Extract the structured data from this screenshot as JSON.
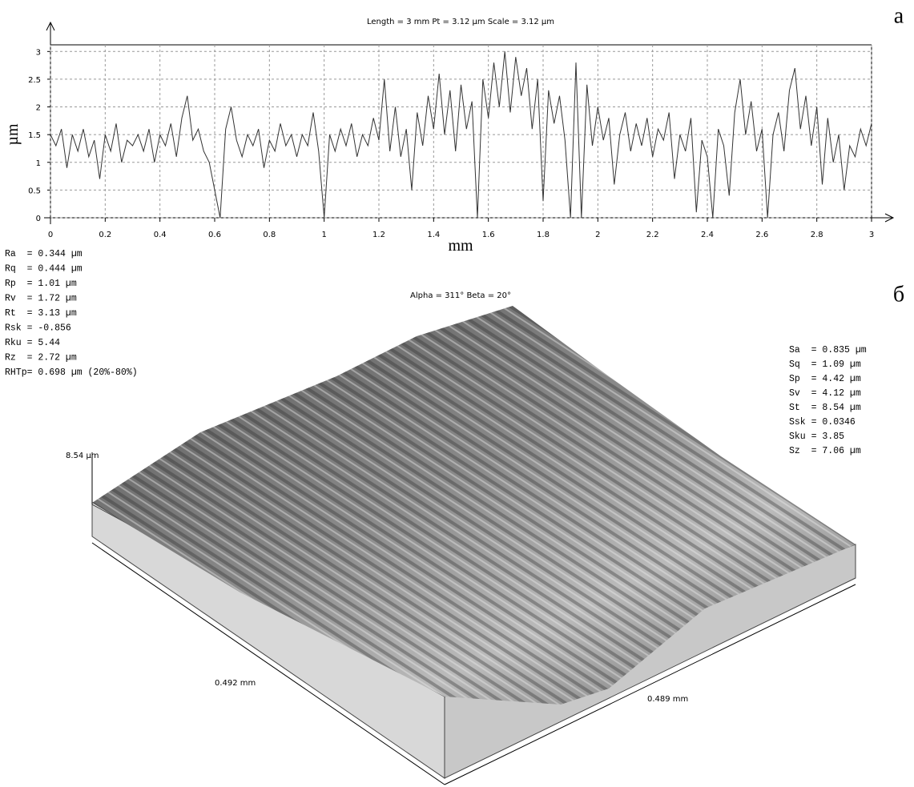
{
  "chart_data": {
    "type": "line",
    "title": "Length = 3 mm  Pt = 3.12 µm  Scale = 3.12 µm",
    "x_label": "mm",
    "y_label": "µm",
    "color": "#333333",
    "grid": true,
    "xlim": [
      0,
      3
    ],
    "ylim": [
      0,
      3.12
    ],
    "xticks": [
      0,
      0.2,
      0.4,
      0.6,
      0.8,
      1,
      1.2,
      1.4,
      1.6,
      1.8,
      2,
      2.2,
      2.4,
      2.6,
      2.8,
      3
    ],
    "yticks": [
      0,
      0.5,
      1,
      1.5,
      2,
      2.5,
      3
    ],
    "x": [
      0,
      0.02,
      0.04,
      0.06,
      0.08,
      0.1,
      0.12,
      0.14,
      0.16,
      0.18,
      0.2,
      0.22,
      0.24,
      0.26,
      0.28,
      0.3,
      0.32,
      0.34,
      0.36,
      0.38,
      0.4,
      0.42,
      0.44,
      0.46,
      0.48,
      0.5,
      0.52,
      0.54,
      0.56,
      0.58,
      0.6,
      0.62,
      0.64,
      0.66,
      0.68,
      0.7,
      0.72,
      0.74,
      0.76,
      0.78,
      0.8,
      0.82,
      0.84,
      0.86,
      0.88,
      0.9,
      0.92,
      0.94,
      0.96,
      0.98,
      1,
      1.02,
      1.04,
      1.06,
      1.08,
      1.1,
      1.12,
      1.14,
      1.16,
      1.18,
      1.2,
      1.22,
      1.24,
      1.26,
      1.28,
      1.3,
      1.32,
      1.34,
      1.36,
      1.38,
      1.4,
      1.42,
      1.44,
      1.46,
      1.48,
      1.5,
      1.52,
      1.54,
      1.56,
      1.58,
      1.6,
      1.62,
      1.64,
      1.66,
      1.68,
      1.7,
      1.72,
      1.74,
      1.76,
      1.78,
      1.8,
      1.82,
      1.84,
      1.86,
      1.88,
      1.9,
      1.92,
      1.94,
      1.96,
      1.98,
      2,
      2.02,
      2.04,
      2.06,
      2.08,
      2.1,
      2.12,
      2.14,
      2.16,
      2.18,
      2.2,
      2.22,
      2.24,
      2.26,
      2.28,
      2.3,
      2.32,
      2.34,
      2.36,
      2.38,
      2.4,
      2.42,
      2.44,
      2.46,
      2.48,
      2.5,
      2.52,
      2.54,
      2.56,
      2.58,
      2.6,
      2.62,
      2.64,
      2.66,
      2.68,
      2.7,
      2.72,
      2.74,
      2.76,
      2.78,
      2.8,
      2.82,
      2.84,
      2.86,
      2.88,
      2.9,
      2.92,
      2.94,
      2.96,
      2.98,
      3
    ],
    "values": [
      1.5,
      1.3,
      1.6,
      0.9,
      1.5,
      1.2,
      1.6,
      1.1,
      1.4,
      0.7,
      1.5,
      1.2,
      1.7,
      1.0,
      1.4,
      1.3,
      1.5,
      1.2,
      1.6,
      1.0,
      1.5,
      1.3,
      1.7,
      1.1,
      1.8,
      2.2,
      1.4,
      1.6,
      1.2,
      1.0,
      0.5,
      0.0,
      1.6,
      2.0,
      1.4,
      1.1,
      1.5,
      1.3,
      1.6,
      0.9,
      1.4,
      1.2,
      1.7,
      1.3,
      1.5,
      1.1,
      1.5,
      1.3,
      1.9,
      1.2,
      0.0,
      1.5,
      1.2,
      1.6,
      1.3,
      1.7,
      1.1,
      1.5,
      1.3,
      1.8,
      1.4,
      2.5,
      1.2,
      2.0,
      1.1,
      1.6,
      0.5,
      1.9,
      1.3,
      2.2,
      1.6,
      2.6,
      1.5,
      2.3,
      1.2,
      2.4,
      1.6,
      2.1,
      0.0,
      2.5,
      1.8,
      2.8,
      2.0,
      3.0,
      1.9,
      2.9,
      2.2,
      2.7,
      1.6,
      2.5,
      0.3,
      2.3,
      1.7,
      2.2,
      1.4,
      0.0,
      2.8,
      0.0,
      2.4,
      1.3,
      2.0,
      1.4,
      1.8,
      0.6,
      1.5,
      1.9,
      1.2,
      1.7,
      1.3,
      1.8,
      1.1,
      1.6,
      1.4,
      1.9,
      0.7,
      1.5,
      1.2,
      1.8,
      0.1,
      1.4,
      1.1,
      0.0,
      1.6,
      1.3,
      0.4,
      1.9,
      2.5,
      1.5,
      2.1,
      1.2,
      1.6,
      0.0,
      1.5,
      1.9,
      1.2,
      2.3,
      2.7,
      1.6,
      2.2,
      1.3,
      2.0,
      0.6,
      1.8,
      1.0,
      1.5,
      0.5,
      1.3,
      1.1,
      1.6,
      1.3,
      1.7
    ]
  },
  "panel_labels": [
    "а",
    "б"
  ],
  "profile_params": [
    "Ra  = 0.344 µm",
    "Rq  = 0.444 µm",
    "Rp  = 1.01 µm",
    "Rv  = 1.72 µm",
    "Rt  = 3.13 µm",
    "Rsk = -0.856",
    "Rku = 5.44",
    "Rz  = 2.72 µm",
    "RHTp= 0.698 µm (20%-80%)"
  ],
  "surface": {
    "title": "Alpha = 311°  Beta = 20°",
    "z_label": "8.54 µm",
    "x_label": "0.492 mm",
    "y_label": "0.489 mm",
    "params": [
      "Sa  = 0.835 µm",
      "Sq  = 1.09 µm",
      "Sp  = 4.42 µm",
      "Sv  = 4.12 µm",
      "St  = 8.54 µm",
      "Ssk = 0.0346",
      "Sku = 3.85",
      "Sz  = 7.06 µm"
    ]
  }
}
